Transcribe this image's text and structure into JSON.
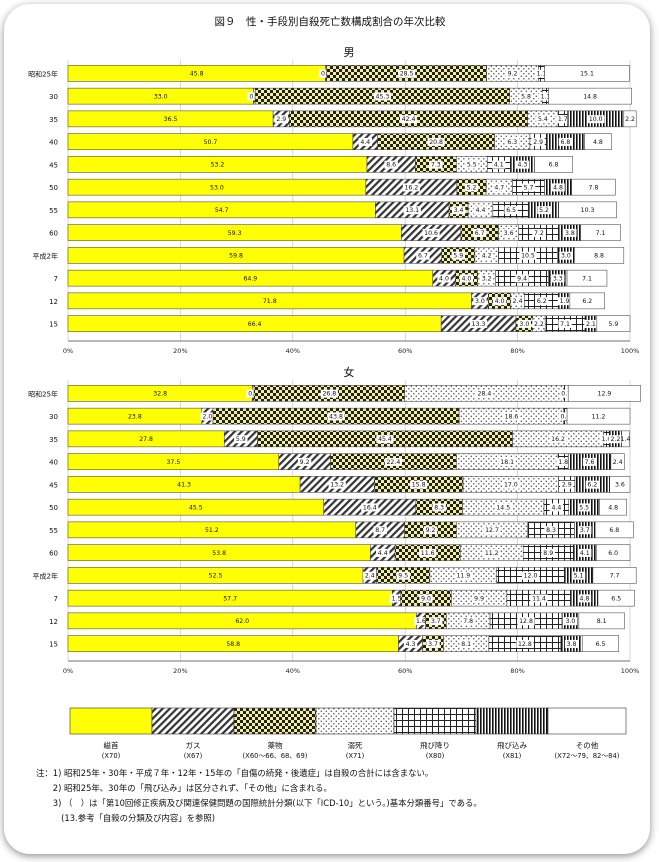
{
  "figure_title": "図９　性・手段別自殺死亡数構成割合の年次比較",
  "x_ticks": [
    "0%",
    "20%",
    "40%",
    "60%",
    "80%",
    "100%"
  ],
  "colors": {
    "hanging": "#ffff00",
    "gas": "#555555",
    "drug": "#c9c28a",
    "drowning": "#999999",
    "jump_high": "#333333",
    "jump_train": "#111111",
    "other": "#ffffff"
  },
  "chart_data": [
    {
      "type": "bar",
      "orientation": "horizontal",
      "stacked": true,
      "title": "男",
      "categories": [
        "昭和25年",
        "30",
        "35",
        "40",
        "45",
        "50",
        "55",
        "60",
        "平成2年",
        "7",
        "12",
        "15"
      ],
      "series": [
        {
          "key": "hanging",
          "name": "縊首",
          "values": [
            45.8,
            33.0,
            36.5,
            50.7,
            53.2,
            53.0,
            54.7,
            59.3,
            59.8,
            64.9,
            71.8,
            66.4
          ]
        },
        {
          "key": "gas",
          "name": "ガス",
          "values": [
            0.2,
            0.3,
            2.9,
            4.4,
            8.6,
            16.2,
            13.1,
            10.6,
            6.7,
            4.0,
            3.0,
            13.3
          ]
        },
        {
          "key": "drug",
          "name": "薬物",
          "values": [
            28.5,
            45.3,
            42.4,
            20.8,
            7.3,
            5.2,
            3.4,
            6.7,
            5.9,
            4.0,
            4.0,
            3.0
          ]
        },
        {
          "key": "drowning",
          "name": "溺死",
          "values": [
            9.2,
            5.8,
            5.4,
            6.3,
            5.5,
            4.7,
            4.4,
            3.6,
            4.2,
            3.2,
            2.4,
            2.2
          ]
        },
        {
          "key": "jump_high",
          "name": "飛び降り",
          "values": [
            1.1,
            1.1,
            1.7,
            2.9,
            4.1,
            5.7,
            6.5,
            7.2,
            10.5,
            9.4,
            6.2,
            7.1
          ]
        },
        {
          "key": "jump_train",
          "name": "飛び込み",
          "values": [
            0.0,
            0.0,
            10.0,
            6.8,
            4.3,
            4.8,
            5.2,
            3.8,
            3.0,
            3.3,
            1.9,
            2.1
          ]
        },
        {
          "key": "other",
          "name": "その他",
          "values": [
            15.1,
            14.8,
            2.2,
            4.8,
            6.8,
            7.8,
            10.3,
            7.1,
            8.8,
            7.1,
            6.2,
            5.9
          ]
        }
      ],
      "segment_labels": [
        [
          "45.8",
          "0.2",
          "28.5",
          "9.2",
          "1.1",
          "",
          "15.1"
        ],
        [
          "33.0",
          "0.3",
          "45.3",
          "5.8",
          "1.1",
          "",
          "14.8"
        ],
        [
          "36.5",
          "2.9",
          "42.4",
          "5.4",
          "1.7",
          "10.0",
          "2.2"
        ],
        [
          "50.7",
          "4.4",
          "20.8",
          "6.3",
          "2.9",
          "6.8",
          "4.8"
        ],
        [
          "53.2",
          "8.6",
          "7.3",
          "5.5",
          "4.1",
          "4.3",
          "6.8"
        ],
        [
          "53.0",
          "16.2",
          "5.2",
          "4.7",
          "5.7",
          "4.8",
          "7.8"
        ],
        [
          "54.7",
          "13.1",
          "3.4",
          "4.4",
          "6.5",
          "5.2",
          "10.3"
        ],
        [
          "59.3",
          "10.6",
          "6.7",
          "3.6",
          "7.2",
          "3.8",
          "7.1"
        ],
        [
          "59.8",
          "6.7",
          "5.9",
          "4.2",
          "10.5",
          "3.0",
          "8.8"
        ],
        [
          "64.9",
          "4.0",
          "4.0",
          "3.2",
          "9.4",
          "3.3",
          "7.1"
        ],
        [
          "71.8",
          "3.0",
          "4.0",
          "2.4",
          "6.2",
          "1.9",
          "6.2"
        ],
        [
          "66.4",
          "13.3",
          "3.0",
          "2.2",
          "7.1",
          "2.1",
          "5.9"
        ]
      ],
      "xlim": [
        0,
        100
      ],
      "grid": true
    },
    {
      "type": "bar",
      "orientation": "horizontal",
      "stacked": true,
      "title": "女",
      "categories": [
        "昭和25年",
        "30",
        "35",
        "40",
        "45",
        "50",
        "55",
        "60",
        "平成2年",
        "7",
        "12",
        "15"
      ],
      "series": [
        {
          "key": "hanging",
          "name": "縊首",
          "values": [
            32.8,
            23.8,
            27.8,
            37.5,
            41.3,
            45.5,
            51.2,
            53.8,
            52.5,
            57.7,
            62.0,
            58.8
          ]
        },
        {
          "key": "gas",
          "name": "ガス",
          "values": [
            0.3,
            2.0,
            5.9,
            9.2,
            13.2,
            16.4,
            8.7,
            4.4,
            2.4,
            1.5,
            1.6,
            4.3
          ]
        },
        {
          "key": "drug",
          "name": "薬物",
          "values": [
            26.8,
            43.8,
            45.4,
            22.4,
            15.8,
            8.3,
            9.2,
            11.6,
            9.5,
            9.0,
            3.7,
            3.7
          ]
        },
        {
          "key": "drowning",
          "name": "溺死",
          "values": [
            28.4,
            18.6,
            16.2,
            18.1,
            17.0,
            14.5,
            12.7,
            11.2,
            11.9,
            9.9,
            7.8,
            8.1
          ]
        },
        {
          "key": "jump_high",
          "name": "飛び降り",
          "values": [
            0.7,
            0.6,
            1.0,
            1.8,
            2.9,
            4.4,
            8.3,
            8.9,
            12.0,
            11.4,
            12.8,
            12.8
          ]
        },
        {
          "key": "jump_train",
          "name": "飛び込み",
          "values": [
            0.0,
            0.0,
            2.2,
            7.6,
            6.2,
            5.5,
            3.7,
            4.1,
            5.1,
            4.8,
            3.0,
            3.8
          ]
        },
        {
          "key": "other",
          "name": "その他",
          "values": [
            12.9,
            11.2,
            1.4,
            2.4,
            3.6,
            4.8,
            6.8,
            6.0,
            7.7,
            6.5,
            8.1,
            6.5
          ]
        }
      ],
      "segment_labels": [
        [
          "32.8",
          "0.3",
          "26.8",
          "28.4",
          "0.7",
          "",
          "12.9"
        ],
        [
          "23.8",
          "2.0",
          "43.8",
          "18.6",
          "0.6",
          "",
          "11.2"
        ],
        [
          "27.8",
          "5.9",
          "45.4",
          "16.2",
          "1.0",
          "2.2",
          "1.4"
        ],
        [
          "37.5",
          "9.2",
          "22.4",
          "18.1",
          "1.8",
          "7.6",
          "2.4"
        ],
        [
          "41.3",
          "13.2",
          "15.8",
          "17.0",
          "2.9",
          "6.2",
          "3.6"
        ],
        [
          "45.5",
          "16.4",
          "8.3",
          "14.5",
          "4.4",
          "5.5",
          "4.8"
        ],
        [
          "51.2",
          "8.7",
          "9.2",
          "12.7",
          "8.3",
          "3.7",
          "6.8"
        ],
        [
          "53.8",
          "4.4",
          "11.6",
          "11.2",
          "8.9",
          "4.1",
          "6.0"
        ],
        [
          "52.5",
          "2.4",
          "9.5",
          "11.9",
          "12.0",
          "5.1",
          "7.7"
        ],
        [
          "57.7",
          "1.5",
          "9.0",
          "9.9",
          "11.4",
          "4.8",
          "6.5"
        ],
        [
          "62.0",
          "1.6",
          "3.7",
          "7.8",
          "12.8",
          "3.0",
          "8.1"
        ],
        [
          "58.8",
          "4.3",
          "3.7",
          "8.1",
          "12.8",
          "3.8",
          "6.5"
        ]
      ],
      "xlim": [
        0,
        100
      ],
      "grid": true
    }
  ],
  "legend": [
    {
      "key": "hanging",
      "name": "縊首",
      "code": "(X70)"
    },
    {
      "key": "gas",
      "name": "ガス",
      "code": "(X67)"
    },
    {
      "key": "drug",
      "name": "薬物",
      "code": "(X60～66、68、69)"
    },
    {
      "key": "drowning",
      "name": "溺死",
      "code": "(X71)"
    },
    {
      "key": "jump_high",
      "name": "飛び降り",
      "code": "(X80)"
    },
    {
      "key": "jump_train",
      "name": "飛び込み",
      "code": "(X81)"
    },
    {
      "key": "other",
      "name": "その他",
      "code": "(X72～79、82～84)"
    }
  ],
  "notes": [
    "注：1) 昭和25年・30年・平成７年・12年・15年の「自傷の続発・後遺症」は自殺の合計には含まない。",
    "　　2) 昭和25年、30年の「飛び込み」は区分されず、「その他」に含まれる。",
    "　　3) （　）は「第10回修正疾病及び関連保健問題の国際統計分類(以下「ICD-10」という。)基本分類番号」である。",
    "　　　(13.参考「自殺の分類及び内容」を参照)"
  ]
}
